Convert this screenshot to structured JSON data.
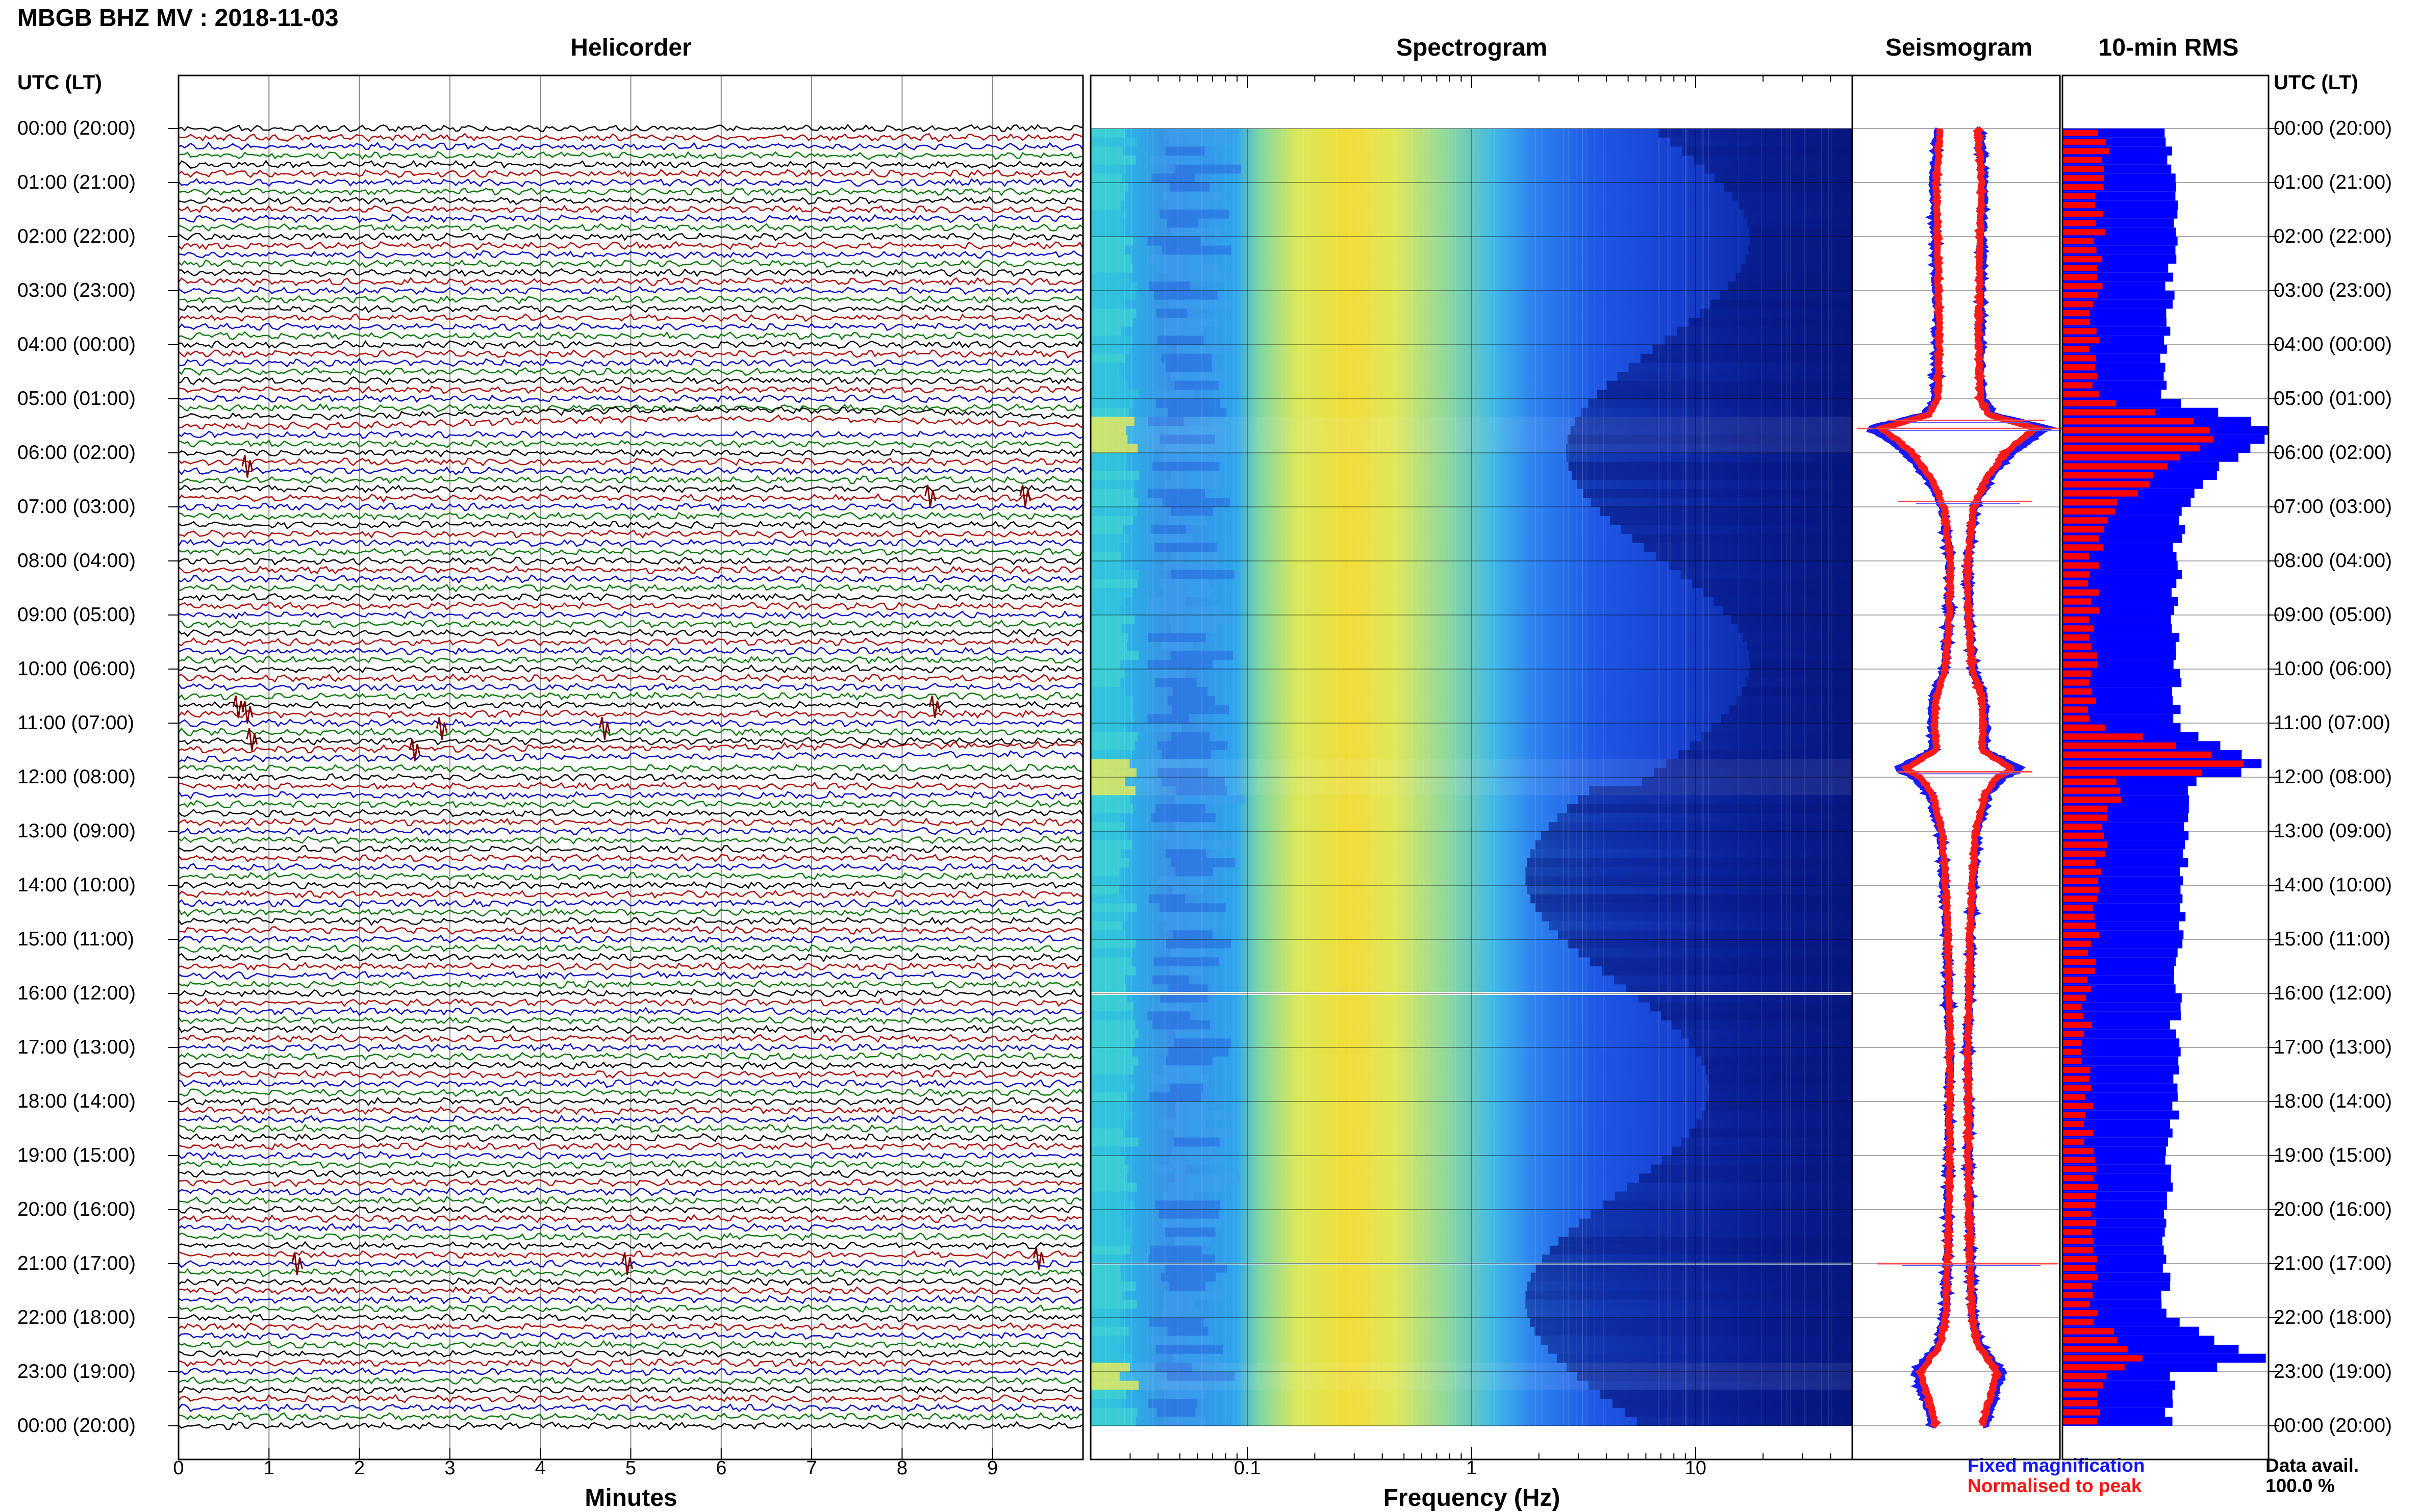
{
  "header": {
    "title": "MBGB BHZ MV : 2018-11-03"
  },
  "panels": {
    "helicorder": "Helicorder",
    "spectrogram": "Spectrogram",
    "seismogram": "Seismogram",
    "rms": "10-min RMS"
  },
  "time_axis": {
    "header": "UTC (LT)",
    "labels": [
      "00:00 (20:00)",
      "01:00 (21:00)",
      "02:00 (22:00)",
      "03:00 (23:00)",
      "04:00 (00:00)",
      "05:00 (01:00)",
      "06:00 (02:00)",
      "07:00 (03:00)",
      "08:00 (04:00)",
      "09:00 (05:00)",
      "10:00 (06:00)",
      "11:00 (07:00)",
      "12:00 (08:00)",
      "13:00 (09:00)",
      "14:00 (10:00)",
      "15:00 (11:00)",
      "16:00 (12:00)",
      "17:00 (13:00)",
      "18:00 (14:00)",
      "19:00 (15:00)",
      "20:00 (16:00)",
      "21:00 (17:00)",
      "22:00 (18:00)",
      "23:00 (19:00)",
      "00:00 (20:00)"
    ]
  },
  "chart_data": [
    {
      "type": "line",
      "panel": "Helicorder",
      "xlabel": "Minutes",
      "xticks": [
        "0",
        "1",
        "2",
        "3",
        "4",
        "5",
        "6",
        "7",
        "8",
        "9"
      ],
      "xlim": [
        0,
        10
      ],
      "rows_per_hour": 6,
      "trace_colors": [
        "#000000",
        "#b00000",
        "#0000c8",
        "#007800"
      ],
      "notable_events_utc_hours": [
        5.5,
        11.5,
        21.0
      ]
    },
    {
      "type": "heatmap",
      "panel": "Spectrogram",
      "xlabel": "Frequency (Hz)",
      "xscale": "log",
      "xticks": [
        "0.1",
        "1",
        "10"
      ],
      "xlim": [
        0.02,
        50
      ],
      "peak_frequency_hz": 0.3,
      "data_gap_utc_hour": 16.0
    },
    {
      "type": "line",
      "panel": "Seismogram",
      "series": [
        {
          "name": "Fixed magnification",
          "color": "#1a1aff"
        },
        {
          "name": "Normalised to peak",
          "color": "#ff1a1a"
        }
      ],
      "profile_hours": [
        0,
        1,
        2,
        3,
        4,
        5,
        5.3,
        5.55,
        5.7,
        6,
        6.5,
        7,
        8,
        9,
        10,
        10.5,
        11,
        11.5,
        11.85,
        12,
        12.3,
        13,
        14,
        15,
        16,
        17,
        18,
        19,
        20,
        21,
        22,
        22.5,
        23,
        23.5,
        24
      ],
      "profile_values": [
        0.15,
        0.2,
        0.18,
        0.17,
        0.16,
        0.18,
        0.3,
        0.9,
        0.75,
        0.5,
        0.25,
        0.1,
        0.02,
        0.03,
        0.08,
        0.2,
        0.22,
        0.2,
        0.6,
        0.4,
        0.25,
        0.12,
        0.08,
        0.05,
        0.04,
        0.02,
        0.03,
        0.03,
        0.04,
        0.05,
        0.08,
        0.15,
        0.4,
        0.3,
        0.2
      ]
    },
    {
      "type": "bar",
      "panel": "10-min RMS",
      "orientation": "horizontal",
      "series": [
        {
          "name": "Fixed magnification",
          "color": "#0000ff"
        },
        {
          "name": "Normalised to peak",
          "color": "#ff0000"
        }
      ],
      "profile_hours": [
        0,
        2,
        4,
        5,
        5.5,
        5.8,
        6,
        7,
        8,
        10,
        11,
        11.85,
        12,
        13,
        16,
        18,
        20,
        22,
        22.8,
        23,
        24
      ],
      "blue_profile": [
        0.5,
        0.55,
        0.5,
        0.5,
        1.0,
        1.0,
        0.85,
        0.6,
        0.55,
        0.55,
        0.55,
        1.0,
        0.65,
        0.6,
        0.55,
        0.55,
        0.5,
        0.5,
        1.0,
        0.55,
        0.5
      ],
      "red_profile": [
        0.2,
        0.18,
        0.15,
        0.15,
        0.7,
        0.75,
        0.6,
        0.25,
        0.15,
        0.15,
        0.15,
        1.0,
        0.3,
        0.2,
        0.12,
        0.12,
        0.15,
        0.15,
        0.4,
        0.2,
        0.15
      ]
    }
  ],
  "legend": {
    "fixed": "Fixed magnification",
    "normalised": "Normalised to peak",
    "fixed_color": "#1414ff",
    "normalised_color": "#ff1414"
  },
  "data_avail": {
    "label": "Data avail.",
    "value": "100.0 %"
  }
}
